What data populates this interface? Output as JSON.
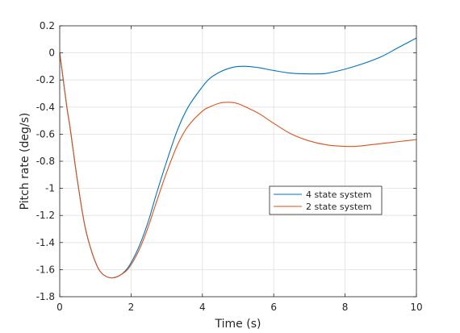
{
  "chart_data": {
    "type": "line",
    "title": "",
    "xlabel": "Time (s)",
    "ylabel": "Pitch rate (deg/s)",
    "xlim": [
      0,
      10
    ],
    "ylim": [
      -1.8,
      0.2
    ],
    "xticks": [
      0,
      2,
      4,
      6,
      8,
      10
    ],
    "yticks": [
      0.2,
      0,
      -0.2,
      -0.4,
      -0.6,
      -0.8,
      -1,
      -1.2,
      -1.4,
      -1.6,
      -1.8
    ],
    "grid": true,
    "legend_position": "center-right",
    "series": [
      {
        "name": "4 state system",
        "color": "#0072BD",
        "x": [
          0,
          0.1,
          0.2,
          0.3,
          0.5,
          0.7,
          0.9,
          1.1,
          1.3,
          1.5,
          1.7,
          1.9,
          2.1,
          2.3,
          2.5,
          2.7,
          3.0,
          3.3,
          3.6,
          4.0,
          4.2,
          4.5,
          4.8,
          5.0,
          5.3,
          5.6,
          6.0,
          6.5,
          7.0,
          7.2,
          7.5,
          8.0,
          8.5,
          9.0,
          9.5,
          10.0
        ],
        "y": [
          0,
          -0.2,
          -0.4,
          -0.57,
          -0.95,
          -1.27,
          -1.47,
          -1.6,
          -1.65,
          -1.66,
          -1.64,
          -1.59,
          -1.5,
          -1.38,
          -1.23,
          -1.05,
          -0.8,
          -0.57,
          -0.4,
          -0.25,
          -0.19,
          -0.14,
          -0.11,
          -0.1,
          -0.1,
          -0.11,
          -0.13,
          -0.15,
          -0.155,
          -0.155,
          -0.15,
          -0.12,
          -0.08,
          -0.03,
          0.04,
          0.11
        ]
      },
      {
        "name": "2 state system",
        "color": "#D95319",
        "x": [
          0,
          0.1,
          0.2,
          0.3,
          0.5,
          0.7,
          0.9,
          1.1,
          1.3,
          1.5,
          1.7,
          1.9,
          2.1,
          2.3,
          2.5,
          2.7,
          3.0,
          3.3,
          3.6,
          4.0,
          4.2,
          4.5,
          4.8,
          5.0,
          5.3,
          5.6,
          6.0,
          6.5,
          7.0,
          7.5,
          8.0,
          8.3,
          8.5,
          9.0,
          9.5,
          10.0
        ],
        "y": [
          0,
          -0.2,
          -0.4,
          -0.57,
          -0.95,
          -1.27,
          -1.47,
          -1.6,
          -1.65,
          -1.66,
          -1.64,
          -1.6,
          -1.52,
          -1.41,
          -1.27,
          -1.11,
          -0.88,
          -0.68,
          -0.54,
          -0.43,
          -0.4,
          -0.37,
          -0.365,
          -0.375,
          -0.41,
          -0.45,
          -0.52,
          -0.6,
          -0.65,
          -0.68,
          -0.69,
          -0.69,
          -0.685,
          -0.67,
          -0.655,
          -0.64
        ]
      }
    ]
  }
}
